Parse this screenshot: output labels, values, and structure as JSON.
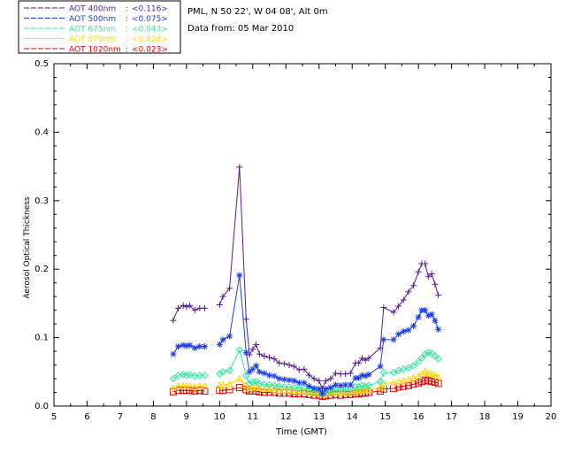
{
  "chart_data": {
    "type": "line",
    "xlabel": "Time (GMT)",
    "ylabel": "Aerosol Optical Thickness",
    "xlim": [
      5,
      20
    ],
    "ylim": [
      0.0,
      0.5
    ],
    "xticks": [
      "5",
      "6",
      "7",
      "8",
      "9",
      "10",
      "11",
      "12",
      "13",
      "14",
      "15",
      "16",
      "17",
      "18",
      "19",
      "20"
    ],
    "yticks": [
      "0.0",
      "0.1",
      "0.2",
      "0.3",
      "0.4",
      "0.5"
    ],
    "info": {
      "line1": "PML, N 50 22', W 04 08', Alt 0m",
      "line2": "Data from: 05 Mar 2010"
    },
    "series": [
      {
        "name": "AOT  400nm",
        "avg": "<0.116>",
        "color": "#5a1a8c",
        "marker": "plus",
        "x": [
          8.6,
          8.75,
          8.9,
          9.0,
          9.1,
          9.25,
          9.4,
          9.55,
          10.0,
          10.1,
          10.3,
          10.6,
          10.8,
          10.9,
          11.0,
          11.1,
          11.2,
          11.35,
          11.5,
          11.65,
          11.8,
          11.95,
          12.1,
          12.25,
          12.4,
          12.55,
          12.7,
          12.85,
          13.0,
          13.1,
          13.2,
          13.35,
          13.5,
          13.65,
          13.8,
          13.95,
          14.1,
          14.2,
          14.3,
          14.4,
          14.5,
          14.85,
          14.95,
          15.25,
          15.4,
          15.55,
          15.7,
          15.85,
          16.0,
          16.1,
          16.2,
          16.3,
          16.4,
          16.5,
          16.6
        ],
        "values": [
          0.125,
          0.143,
          0.147,
          0.145,
          0.147,
          0.14,
          0.143,
          0.143,
          0.148,
          0.16,
          0.172,
          0.349,
          0.127,
          0.075,
          0.083,
          0.09,
          0.076,
          0.073,
          0.071,
          0.069,
          0.063,
          0.062,
          0.06,
          0.058,
          0.053,
          0.054,
          0.045,
          0.04,
          0.037,
          0.025,
          0.037,
          0.04,
          0.048,
          0.047,
          0.047,
          0.048,
          0.063,
          0.063,
          0.07,
          0.067,
          0.07,
          0.085,
          0.144,
          0.137,
          0.146,
          0.155,
          0.167,
          0.176,
          0.196,
          0.208,
          0.208,
          0.189,
          0.193,
          0.178,
          0.162
        ]
      },
      {
        "name": "AOT  500nm",
        "avg": "<0.075>",
        "color": "#1c3de6",
        "marker": "star",
        "x": [
          8.6,
          8.75,
          8.9,
          9.0,
          9.1,
          9.25,
          9.4,
          9.55,
          10.0,
          10.1,
          10.3,
          10.6,
          10.8,
          10.9,
          11.0,
          11.1,
          11.2,
          11.35,
          11.5,
          11.65,
          11.8,
          11.95,
          12.1,
          12.25,
          12.4,
          12.55,
          12.7,
          12.85,
          13.0,
          13.1,
          13.2,
          13.35,
          13.5,
          13.65,
          13.8,
          13.95,
          14.1,
          14.2,
          14.3,
          14.4,
          14.5,
          14.85,
          14.95,
          15.25,
          15.4,
          15.55,
          15.7,
          15.85,
          16.0,
          16.1,
          16.2,
          16.3,
          16.4,
          16.5,
          16.6
        ],
        "values": [
          0.076,
          0.087,
          0.089,
          0.088,
          0.089,
          0.085,
          0.087,
          0.087,
          0.09,
          0.097,
          0.102,
          0.191,
          0.078,
          0.05,
          0.054,
          0.059,
          0.05,
          0.048,
          0.045,
          0.044,
          0.04,
          0.039,
          0.038,
          0.037,
          0.034,
          0.034,
          0.029,
          0.026,
          0.025,
          0.018,
          0.025,
          0.027,
          0.031,
          0.03,
          0.031,
          0.031,
          0.041,
          0.041,
          0.045,
          0.044,
          0.046,
          0.058,
          0.097,
          0.097,
          0.105,
          0.109,
          0.111,
          0.117,
          0.13,
          0.14,
          0.14,
          0.132,
          0.134,
          0.125,
          0.112
        ]
      },
      {
        "name": "AOT  675nm",
        "avg": "<0.043>",
        "color": "#2ee6a0",
        "marker": "diamond",
        "x": [
          8.6,
          8.75,
          8.9,
          9.0,
          9.1,
          9.25,
          9.4,
          9.55,
          10.0,
          10.1,
          10.3,
          10.6,
          10.8,
          10.9,
          11.0,
          11.1,
          11.2,
          11.35,
          11.5,
          11.65,
          11.8,
          11.95,
          12.1,
          12.25,
          12.4,
          12.55,
          12.7,
          12.85,
          13.0,
          13.1,
          13.2,
          13.35,
          13.5,
          13.65,
          13.8,
          13.95,
          14.1,
          14.2,
          14.3,
          14.4,
          14.5,
          14.85,
          14.95,
          15.25,
          15.4,
          15.55,
          15.7,
          15.85,
          16.0,
          16.1,
          16.2,
          16.3,
          16.4,
          16.5,
          16.6
        ],
        "values": [
          0.04,
          0.045,
          0.046,
          0.045,
          0.046,
          0.044,
          0.045,
          0.045,
          0.047,
          0.05,
          0.052,
          0.082,
          0.044,
          0.033,
          0.035,
          0.036,
          0.033,
          0.032,
          0.031,
          0.03,
          0.029,
          0.028,
          0.028,
          0.027,
          0.026,
          0.026,
          0.024,
          0.022,
          0.022,
          0.018,
          0.021,
          0.022,
          0.024,
          0.023,
          0.024,
          0.024,
          0.028,
          0.028,
          0.03,
          0.029,
          0.03,
          0.036,
          0.049,
          0.049,
          0.052,
          0.054,
          0.056,
          0.059,
          0.065,
          0.07,
          0.076,
          0.078,
          0.077,
          0.073,
          0.069
        ]
      },
      {
        "name": "AOT  870nm",
        "avg": "<0.028>",
        "color": "#ffd700",
        "marker": "triangle",
        "x": [
          8.6,
          8.75,
          8.9,
          9.0,
          9.1,
          9.25,
          9.4,
          9.55,
          10.0,
          10.1,
          10.3,
          10.6,
          10.8,
          10.9,
          11.0,
          11.1,
          11.2,
          11.35,
          11.5,
          11.65,
          11.8,
          11.95,
          12.1,
          12.25,
          12.4,
          12.55,
          12.7,
          12.85,
          13.0,
          13.1,
          13.2,
          13.35,
          13.5,
          13.65,
          13.8,
          13.95,
          14.1,
          14.2,
          14.3,
          14.4,
          14.5,
          14.85,
          14.95,
          15.25,
          15.4,
          15.55,
          15.7,
          15.85,
          16.0,
          16.1,
          16.2,
          16.3,
          16.4,
          16.5,
          16.6
        ],
        "values": [
          0.026,
          0.029,
          0.029,
          0.029,
          0.029,
          0.028,
          0.029,
          0.029,
          0.03,
          0.031,
          0.032,
          0.04,
          0.03,
          0.026,
          0.027,
          0.027,
          0.026,
          0.025,
          0.025,
          0.024,
          0.023,
          0.023,
          0.023,
          0.022,
          0.022,
          0.021,
          0.02,
          0.019,
          0.019,
          0.017,
          0.018,
          0.019,
          0.02,
          0.02,
          0.02,
          0.02,
          0.022,
          0.022,
          0.023,
          0.023,
          0.024,
          0.027,
          0.033,
          0.034,
          0.036,
          0.037,
          0.039,
          0.041,
          0.044,
          0.047,
          0.05,
          0.048,
          0.047,
          0.045,
          0.042
        ]
      },
      {
        "name": "AOT 1020nm",
        "avg": "<0.023>",
        "color": "#e00000",
        "marker": "square",
        "x": [
          8.6,
          8.75,
          8.9,
          9.0,
          9.1,
          9.25,
          9.4,
          9.55,
          10.0,
          10.1,
          10.3,
          10.6,
          10.8,
          10.9,
          11.0,
          11.1,
          11.2,
          11.35,
          11.5,
          11.65,
          11.8,
          11.95,
          12.1,
          12.25,
          12.4,
          12.55,
          12.7,
          12.85,
          13.0,
          13.1,
          13.2,
          13.35,
          13.5,
          13.65,
          13.8,
          13.95,
          14.1,
          14.2,
          14.3,
          14.4,
          14.5,
          14.85,
          14.95,
          15.25,
          15.4,
          15.55,
          15.7,
          15.85,
          16.0,
          16.1,
          16.2,
          16.3,
          16.4,
          16.5,
          16.6
        ],
        "values": [
          0.021,
          0.023,
          0.023,
          0.023,
          0.023,
          0.022,
          0.023,
          0.022,
          0.023,
          0.023,
          0.024,
          0.027,
          0.024,
          0.022,
          0.022,
          0.022,
          0.021,
          0.02,
          0.02,
          0.02,
          0.019,
          0.019,
          0.019,
          0.018,
          0.018,
          0.018,
          0.017,
          0.016,
          0.016,
          0.014,
          0.015,
          0.016,
          0.017,
          0.016,
          0.017,
          0.017,
          0.018,
          0.018,
          0.019,
          0.019,
          0.02,
          0.022,
          0.025,
          0.026,
          0.028,
          0.029,
          0.03,
          0.032,
          0.034,
          0.036,
          0.038,
          0.037,
          0.036,
          0.035,
          0.033
        ]
      }
    ]
  }
}
